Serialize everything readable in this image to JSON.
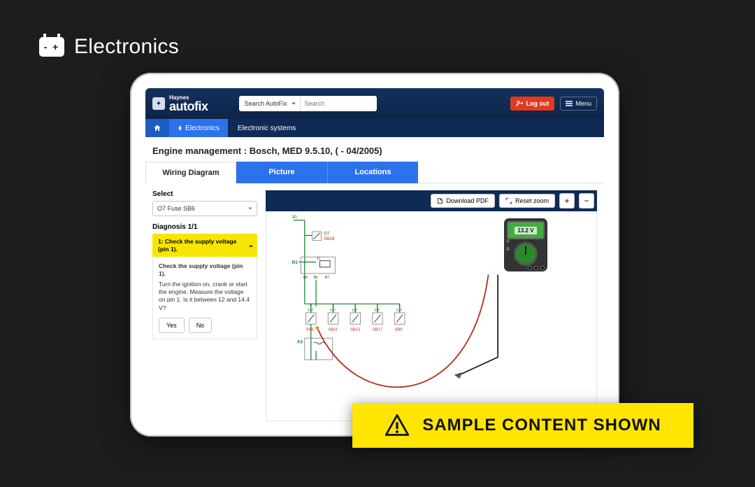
{
  "category_label": "Electronics",
  "brand": {
    "line1": "Haynes",
    "line2": "autofix"
  },
  "search": {
    "scope": "Search AutoFix",
    "placeholder": "Search"
  },
  "logout_label": "Log out",
  "menu_label": "Menu",
  "breadcrumb": {
    "back": "Electronics",
    "current": "Electronic systems"
  },
  "page_title": "Engine management :  Bosch, MED 9.5.10, ( - 04/2005)",
  "tabs": [
    {
      "label": "Wiring Diagram",
      "active": true
    },
    {
      "label": "Picture",
      "active": false
    },
    {
      "label": "Locations",
      "active": false
    }
  ],
  "side": {
    "select_label": "Select",
    "select_value": "O7  Fuse  SB6",
    "diag_title": "Diagnosis 1/1",
    "accordion_header": "1: Check the supply voltage (pin 1).",
    "step_title": "Check the supply voltage (pin 1).",
    "step_text": "Turn the ignition on, crank or start the engine. Measure the voltage on pin 1. Is it between 12 and 14.4 V?",
    "yes": "Yes",
    "no": "No"
  },
  "toolbar": {
    "download": "Download PDF",
    "reset_zoom": "Reset zoom",
    "plus": "+",
    "minus": "−"
  },
  "multimeter_reading": "13.2 V",
  "sample_banner": "SAMPLE CONTENT SHOWN",
  "diagram": {
    "colors": {
      "wire_green": "#0a7a2a",
      "wire_label_red": "#c42020",
      "wire_label_green": "#0a7a2a",
      "box_stroke": "#888888",
      "probe_red": "#b23018",
      "probe_black": "#222222"
    },
    "top_label": "30",
    "labels": {
      "O7": "O7",
      "SB28": "SB28",
      "R1": "R1",
      "D": "D",
      "p86": "86",
      "p85": "85",
      "p87": "87",
      "A3": "A3"
    },
    "fuse_row": [
      {
        "top": "O7",
        "bottom": "SB6"
      },
      {
        "top": "O7",
        "bottom": "SB11"
      },
      {
        "top": "O7",
        "bottom": "SB12"
      },
      {
        "top": "O7",
        "bottom": "SB17"
      },
      {
        "top": "O7",
        "bottom": "SB9"
      }
    ],
    "fuse_row_numbers": [
      "2",
      "1",
      "1",
      "1",
      "1"
    ]
  }
}
